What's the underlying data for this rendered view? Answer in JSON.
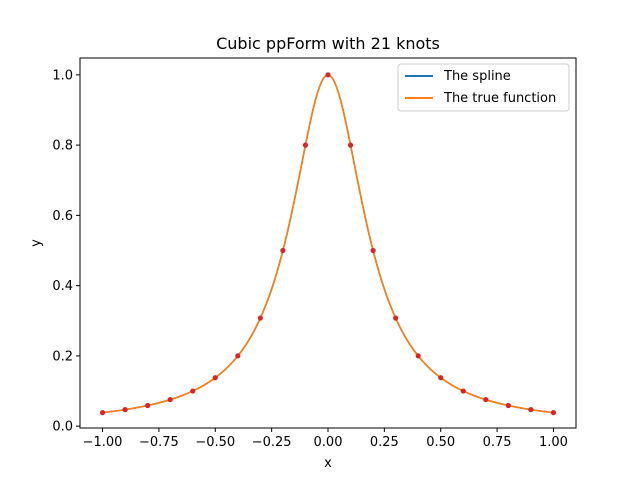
{
  "chart_data": {
    "type": "line",
    "title": "Cubic ppForm with 21 knots",
    "xlabel": "x",
    "ylabel": "y",
    "xlim": [
      -1.1,
      1.1
    ],
    "ylim": [
      -0.0052,
      1.0479
    ],
    "xticks": [
      -1.0,
      -0.75,
      -0.5,
      -0.25,
      0.0,
      0.25,
      0.5,
      0.75,
      1.0
    ],
    "xtick_labels": [
      "−1.00",
      "−0.75",
      "−0.50",
      "−0.25",
      "0.00",
      "0.25",
      "0.50",
      "0.75",
      "1.00"
    ],
    "yticks": [
      0.0,
      0.2,
      0.4,
      0.6,
      0.8,
      1.0
    ],
    "ytick_labels": [
      "0.0",
      "0.2",
      "0.4",
      "0.6",
      "0.8",
      "1.0"
    ],
    "grid": false,
    "legend_position": "top-right",
    "series": [
      {
        "name": "The spline",
        "color": "#1f77b4",
        "function": "1/(1+25*x^2)",
        "x_range": [
          -1,
          1
        ]
      },
      {
        "name": "The true function",
        "color": "#ff7f0e",
        "function": "1/(1+25*x^2)",
        "x_range": [
          -1,
          1
        ]
      }
    ],
    "knots": {
      "color": "#d62728",
      "x": [
        -1.0,
        -0.9,
        -0.8,
        -0.7,
        -0.6,
        -0.5,
        -0.4,
        -0.3,
        -0.2,
        -0.1,
        0.0,
        0.1,
        0.2,
        0.3,
        0.4,
        0.5,
        0.6,
        0.7,
        0.8,
        0.9,
        1.0
      ],
      "y": [
        0.0385,
        0.0471,
        0.0588,
        0.0755,
        0.1,
        0.1379,
        0.2,
        0.3077,
        0.5,
        0.8,
        1.0,
        0.8,
        0.5,
        0.3077,
        0.2,
        0.1379,
        0.1,
        0.0755,
        0.0588,
        0.0471,
        0.0385
      ]
    }
  }
}
